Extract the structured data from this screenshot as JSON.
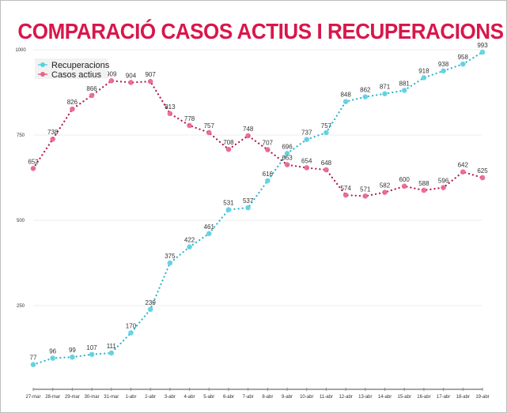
{
  "chart_data": {
    "type": "line",
    "title": "COMPARACIÓ CASOS ACTIUS I RECUPERACIONS",
    "categories": [
      "27-mar",
      "28-mar",
      "29-mar",
      "30-mar",
      "31-mar",
      "1-abr",
      "2-abr",
      "3-abr",
      "4-abr",
      "5-abr",
      "6-abr",
      "7-abr",
      "8-abr",
      "9-abr",
      "10-abr",
      "11-abr",
      "12-abr",
      "13-abr",
      "14-abr",
      "15-abr",
      "16-abr",
      "17-abr",
      "18-abr",
      "19-abr"
    ],
    "series": [
      {
        "name": "Recuperacions",
        "color": "#5ccfe0",
        "values": [
          77,
          96,
          99,
          107,
          111,
          170,
          239,
          375,
          422,
          461,
          531,
          537,
          616,
          696,
          737,
          757,
          848,
          862,
          871,
          881,
          918,
          938,
          958,
          993
        ]
      },
      {
        "name": "Casos actius",
        "color": "#e8638a",
        "values": [
          652,
          738,
          826,
          866,
          909,
          904,
          907,
          813,
          778,
          757,
          708,
          748,
          707,
          663,
          654,
          648,
          574,
          571,
          582,
          600,
          588,
          596,
          642,
          625
        ]
      }
    ],
    "yticks": [
      250,
      500,
      750,
      1000
    ],
    "ylim": [
      0,
      1000
    ],
    "grid": "horizontal",
    "legend": "top-left",
    "line_style": "dotted"
  }
}
